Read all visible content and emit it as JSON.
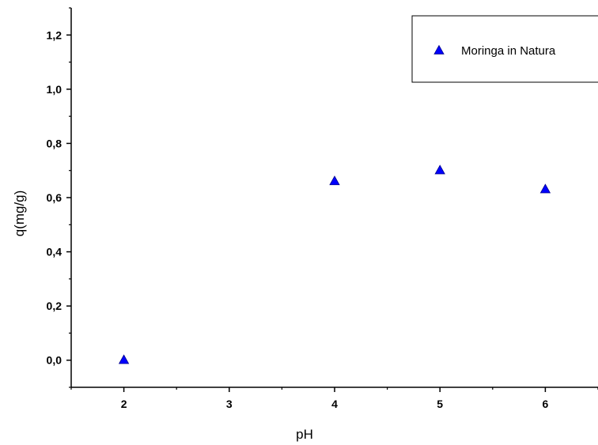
{
  "chart_data": {
    "type": "scatter",
    "xlabel": "pH",
    "ylabel": "q(mg/g)",
    "xlim": [
      1.5,
      6.5
    ],
    "ylim": [
      -0.1,
      1.3
    ],
    "x_ticks": [
      2,
      3,
      4,
      5,
      6
    ],
    "x_tick_labels": [
      "2",
      "3",
      "4",
      "5",
      "6"
    ],
    "y_ticks": [
      0.0,
      0.2,
      0.4,
      0.6,
      0.8,
      1.0,
      1.2
    ],
    "y_tick_labels": [
      "0,0",
      "0,2",
      "0,4",
      "0,6",
      "0,8",
      "1,0",
      "1,2"
    ],
    "grid": false,
    "legend_position": "top-right",
    "series": [
      {
        "name": "Moringa in Natura",
        "marker": "triangle",
        "color": "#0000ff",
        "x": [
          2,
          4,
          5,
          6
        ],
        "y": [
          0.0,
          0.66,
          0.7,
          0.63
        ]
      }
    ]
  }
}
